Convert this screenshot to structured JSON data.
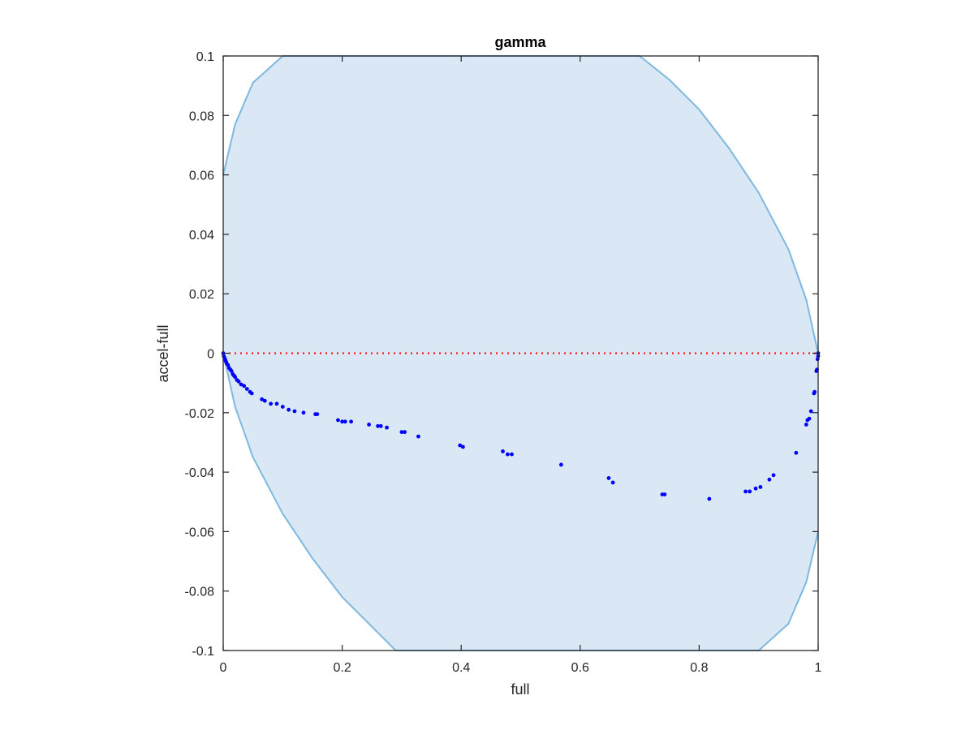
{
  "chart_data": {
    "type": "scatter",
    "title": "gamma",
    "xlabel": "full",
    "ylabel": "accel-full",
    "xlim": [
      0,
      1
    ],
    "ylim": [
      -0.1,
      0.1
    ],
    "x_ticks": [
      0,
      0.2,
      0.4,
      0.6,
      0.8,
      1
    ],
    "x_tick_labels": [
      "0",
      "0.2",
      "0.4",
      "0.6",
      "0.8",
      "1"
    ],
    "y_ticks": [
      -0.1,
      -0.08,
      -0.06,
      -0.04,
      -0.02,
      0,
      0.02,
      0.04,
      0.06,
      0.08,
      0.1
    ],
    "y_tick_labels": [
      "-0.1",
      "-0.08",
      "-0.06",
      "-0.04",
      "-0.02",
      "0",
      "0.02",
      "0.04",
      "0.06",
      "0.08",
      "0.1"
    ],
    "grid": false,
    "reference_line": {
      "y": 0,
      "style": "dotted",
      "color": "#ff0000"
    },
    "band": {
      "fill": "#d9e8f4",
      "edge": "#7fb8de",
      "upper": [
        [
          0,
          0.06
        ],
        [
          0.02,
          0.077
        ],
        [
          0.05,
          0.091
        ],
        [
          0.1,
          0.1
        ],
        [
          0.7,
          0.1
        ],
        [
          0.75,
          0.092
        ],
        [
          0.8,
          0.082
        ],
        [
          0.85,
          0.069
        ],
        [
          0.9,
          0.054
        ],
        [
          0.95,
          0.035
        ],
        [
          0.98,
          0.018
        ],
        [
          1,
          0
        ]
      ],
      "lower": [
        [
          0,
          0
        ],
        [
          0.02,
          -0.018
        ],
        [
          0.05,
          -0.035
        ],
        [
          0.1,
          -0.054
        ],
        [
          0.15,
          -0.069
        ],
        [
          0.2,
          -0.082
        ],
        [
          0.25,
          -0.092
        ],
        [
          0.29,
          -0.1
        ],
        [
          0.9,
          -0.1
        ],
        [
          0.95,
          -0.091
        ],
        [
          0.98,
          -0.077
        ],
        [
          1,
          -0.06
        ]
      ]
    },
    "series": [
      {
        "color": "#0000ff",
        "points": [
          [
            0,
            0
          ],
          [
            0.001,
            -0.001
          ],
          [
            0.002,
            -0.0015
          ],
          [
            0.003,
            -0.002
          ],
          [
            0.004,
            -0.0025
          ],
          [
            0.005,
            -0.003
          ],
          [
            0.006,
            -0.0035
          ],
          [
            0.008,
            -0.004
          ],
          [
            0.01,
            -0.005
          ],
          [
            0.012,
            -0.0055
          ],
          [
            0.014,
            -0.006
          ],
          [
            0.016,
            -0.007
          ],
          [
            0.018,
            -0.0075
          ],
          [
            0.02,
            -0.008
          ],
          [
            0.023,
            -0.009
          ],
          [
            0.026,
            -0.0095
          ],
          [
            0.03,
            -0.0105
          ],
          [
            0.035,
            -0.011
          ],
          [
            0.04,
            -0.012
          ],
          [
            0.045,
            -0.013
          ],
          [
            0.048,
            -0.0135
          ],
          [
            0.065,
            -0.0155
          ],
          [
            0.07,
            -0.016
          ],
          [
            0.08,
            -0.017
          ],
          [
            0.09,
            -0.017
          ],
          [
            0.1,
            -0.018
          ],
          [
            0.11,
            -0.019
          ],
          [
            0.12,
            -0.0195
          ],
          [
            0.135,
            -0.02
          ],
          [
            0.155,
            -0.0205
          ],
          [
            0.158,
            -0.0205
          ],
          [
            0.193,
            -0.0225
          ],
          [
            0.2,
            -0.023
          ],
          [
            0.205,
            -0.023
          ],
          [
            0.215,
            -0.023
          ],
          [
            0.245,
            -0.024
          ],
          [
            0.26,
            -0.0245
          ],
          [
            0.265,
            -0.0245
          ],
          [
            0.275,
            -0.025
          ],
          [
            0.3,
            -0.0265
          ],
          [
            0.305,
            -0.0265
          ],
          [
            0.328,
            -0.028
          ],
          [
            0.398,
            -0.031
          ],
          [
            0.403,
            -0.0315
          ],
          [
            0.47,
            -0.033
          ],
          [
            0.478,
            -0.034
          ],
          [
            0.485,
            -0.034
          ],
          [
            0.568,
            -0.0375
          ],
          [
            0.648,
            -0.042
          ],
          [
            0.655,
            -0.0435
          ],
          [
            0.738,
            -0.0475
          ],
          [
            0.742,
            -0.0475
          ],
          [
            0.817,
            -0.049
          ],
          [
            0.878,
            -0.0465
          ],
          [
            0.885,
            -0.0465
          ],
          [
            0.895,
            -0.0455
          ],
          [
            0.903,
            -0.045
          ],
          [
            0.918,
            -0.0425
          ],
          [
            0.925,
            -0.041
          ],
          [
            0.963,
            -0.0335
          ],
          [
            0.98,
            -0.024
          ],
          [
            0.982,
            -0.0225
          ],
          [
            0.985,
            -0.022
          ],
          [
            0.988,
            -0.0195
          ],
          [
            0.993,
            -0.0135
          ],
          [
            0.994,
            -0.013
          ],
          [
            0.997,
            -0.006
          ],
          [
            0.998,
            -0.0055
          ],
          [
            0.999,
            -0.002
          ],
          [
            1,
            -0.001
          ],
          [
            1,
            0
          ]
        ]
      }
    ]
  }
}
